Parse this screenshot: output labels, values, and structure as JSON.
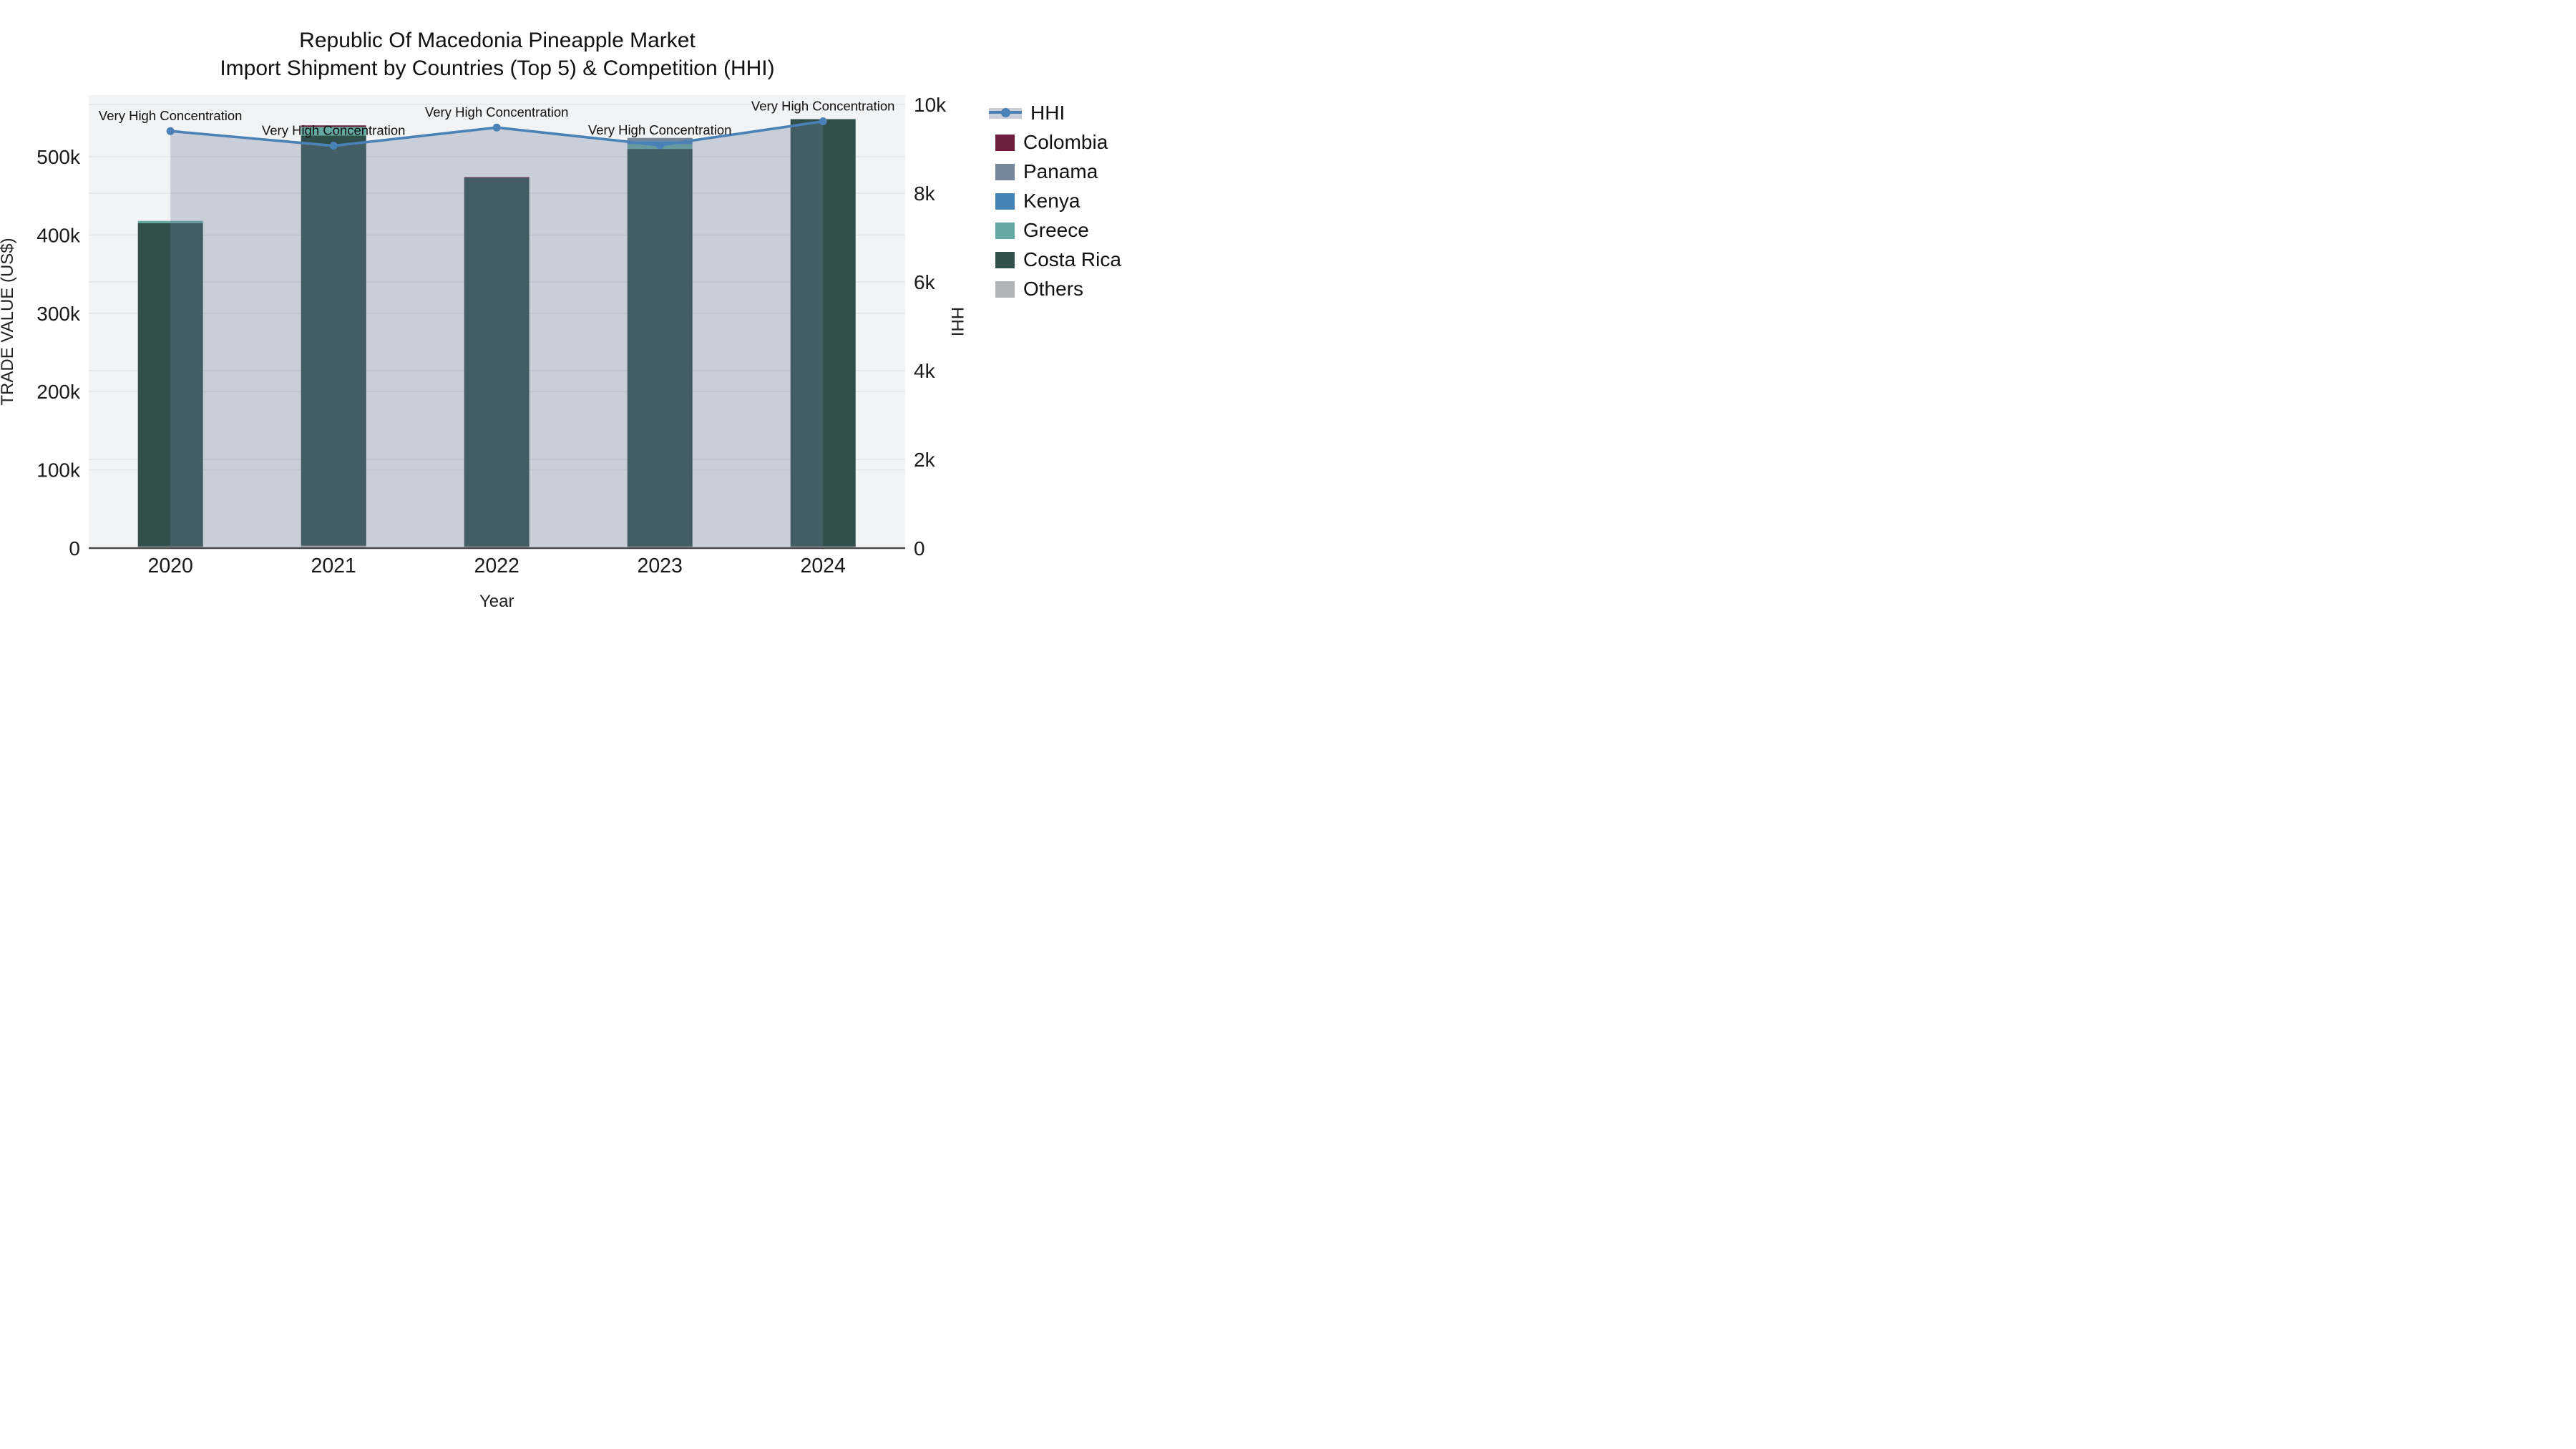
{
  "chart_data": {
    "type": [
      "bar",
      "line"
    ],
    "title_line1": "Republic Of Macedonia Pineapple Market",
    "title_line2": "Import Shipment by Countries (Top 5) & Competition (HHI)",
    "xlabel": "Year",
    "ylabel_left": "TRADE VALUE (US$)",
    "ylabel_right": "HHI",
    "categories": [
      "2020",
      "2021",
      "2022",
      "2023",
      "2024"
    ],
    "stack_order_bottom_to_top": [
      "Others",
      "Costa Rica",
      "Greece",
      "Kenya",
      "Panama",
      "Colombia"
    ],
    "series": [
      {
        "name": "Colombia",
        "color": "#6e1e3c",
        "values": [
          0,
          2000,
          1000,
          0,
          0
        ]
      },
      {
        "name": "Panama",
        "color": "#75859a",
        "values": [
          0,
          0,
          0,
          4000,
          0
        ]
      },
      {
        "name": "Kenya",
        "color": "#4383b6",
        "values": [
          0,
          0,
          0,
          4000,
          0
        ]
      },
      {
        "name": "Greece",
        "color": "#64a8a1",
        "values": [
          3000,
          11000,
          0,
          6000,
          0
        ]
      },
      {
        "name": "Costa Rica",
        "color": "#31504c",
        "values": [
          413000,
          524000,
          471000,
          508000,
          546000
        ]
      },
      {
        "name": "Others",
        "color": "#b1b3b5",
        "values": [
          2000,
          3000,
          2000,
          2000,
          2000
        ]
      }
    ],
    "bar_totals": [
      418000,
      540000,
      474000,
      524000,
      548000
    ],
    "hhi_line": {
      "name": "HHI",
      "line_color": "#4a82b8",
      "area_fill_color": "rgba(110,124,154,0.31)",
      "values": [
        9400,
        9070,
        9480,
        9080,
        9620
      ]
    },
    "annotations": [
      {
        "year": "2020",
        "text": "Very High Concentration"
      },
      {
        "year": "2021",
        "text": "Very High Concentration"
      },
      {
        "year": "2022",
        "text": "Very High Concentration"
      },
      {
        "year": "2023",
        "text": "Very High Concentration"
      },
      {
        "year": "2024",
        "text": "Very High Concentration"
      }
    ],
    "y_left_axis": {
      "ticks": [
        "0",
        "100k",
        "200k",
        "300k",
        "400k",
        "500k"
      ],
      "tick_values": [
        0,
        100000,
        200000,
        300000,
        400000,
        500000
      ],
      "max": 500000
    },
    "y_right_axis": {
      "ticks": [
        "0",
        "2k",
        "4k",
        "6k",
        "8k",
        "10k"
      ],
      "tick_values": [
        0,
        2000,
        4000,
        6000,
        8000,
        10000
      ],
      "max": 10000
    },
    "grid": true,
    "legend_position": "right",
    "plot_background": "#f2f3f4",
    "gridline_color": "#e4e6e9",
    "axis_line_color": "#4a4a4a",
    "legend_entries": [
      "HHI",
      "Colombia",
      "Panama",
      "Kenya",
      "Greece",
      "Costa Rica",
      "Others"
    ]
  }
}
